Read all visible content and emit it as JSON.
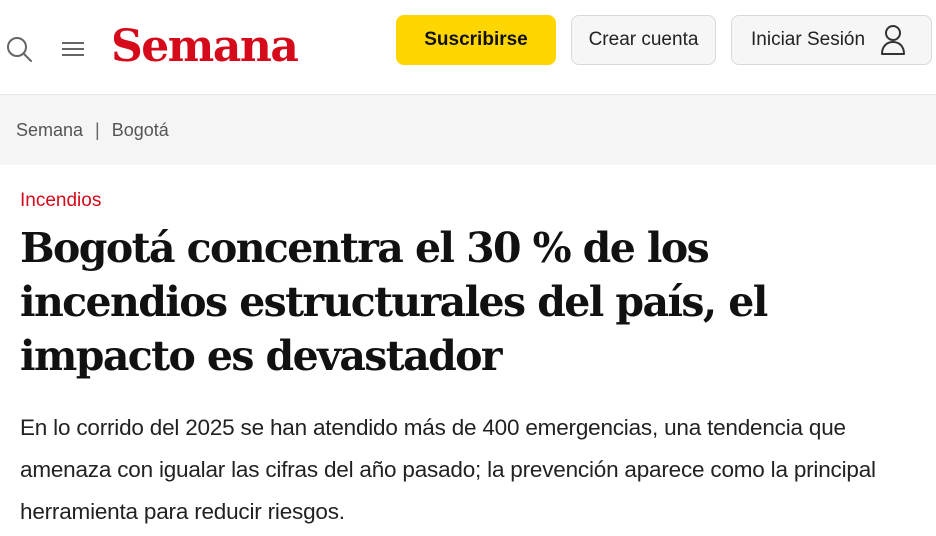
{
  "header": {
    "logo_text": "Semana",
    "search_icon": "search-icon",
    "menu_icon": "hamburger-menu-icon",
    "subscribe_label": "Suscribirse",
    "create_account_label": "Crear cuenta",
    "login_label": "Iniciar Sesión",
    "user_icon": "user-icon"
  },
  "breadcrumb": {
    "items": [
      "Semana",
      "Bogotá"
    ],
    "separator": "|"
  },
  "article": {
    "section": "Incendios",
    "headline": "Bogotá concentra el 30 % de los incendios estructurales del país, el impacto es devastador",
    "summary": "En lo corrido del 2025 se han atendido más de 400 emergencias, una tendencia que amenaza con igualar las cifras del año pasado; la prevención aparece como la principal herramienta para reducir riesgos."
  },
  "colors": {
    "brand_red": "#d50a1a",
    "subscribe_yellow": "#ffd600",
    "breadcrumb_bg": "#f5f5f5"
  }
}
